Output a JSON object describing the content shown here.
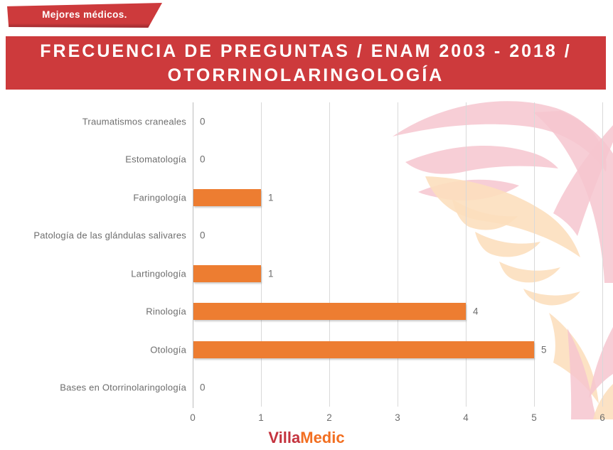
{
  "banner": {
    "label": "Mejores médicos."
  },
  "title": {
    "line1": "FRECUENCIA DE PREGUNTAS / ENAM 2003 - 2018 /",
    "line2": "OTORRINOLARINGOLOGÍA"
  },
  "logo": {
    "part1": "Villa",
    "part2": "Medic"
  },
  "colors": {
    "accent_red": "#CD3A3C",
    "accent_red_dark": "#A82E33",
    "bar_orange": "#ED7D31",
    "label_gray": "#6E6E6E",
    "grid_gray": "#D9D9D9",
    "axis_gray": "#BDBDBD",
    "logo_red": "#C4333E",
    "logo_orange": "#F26F21",
    "watermark_pink": "#F6C6CF",
    "watermark_peach": "#FCDFBE"
  },
  "chart_data": {
    "type": "bar",
    "orientation": "horizontal",
    "title": "FRECUENCIA DE PREGUNTAS / ENAM 2003 - 2018 / OTORRINOLARINGOLOGÍA",
    "categories": [
      "Traumatismos craneales",
      "Estomatología",
      "Faringología",
      "Patología de las glándulas salivares",
      "Lartingología",
      "Rinología",
      "Otología",
      "Bases en Otorrinolaringología"
    ],
    "values": [
      0,
      0,
      1,
      0,
      1,
      4,
      5,
      0
    ],
    "data_labels": [
      0,
      0,
      1,
      0,
      1,
      4,
      5,
      0
    ],
    "xlim": [
      0,
      6
    ],
    "xticks": [
      0,
      1,
      2,
      3,
      4,
      5,
      6
    ],
    "xlabel": "",
    "ylabel": "",
    "grid": true,
    "legend": false,
    "bar_color": "#ED7D31"
  }
}
